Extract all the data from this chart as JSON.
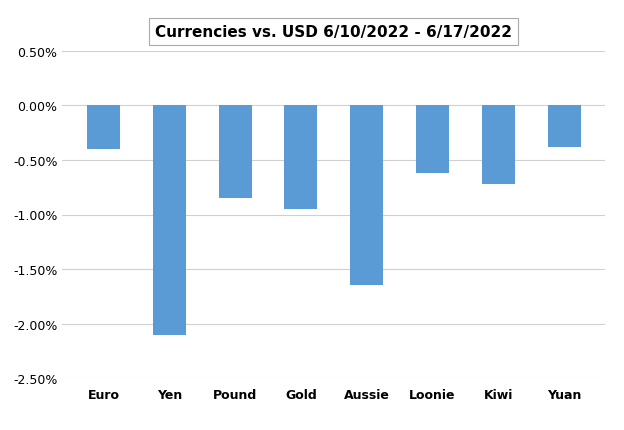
{
  "categories": [
    "Euro",
    "Yen",
    "Pound",
    "Gold",
    "Aussie",
    "Loonie",
    "Kiwi",
    "Yuan"
  ],
  "values": [
    -0.004,
    -0.021,
    -0.0085,
    -0.0095,
    -0.0165,
    -0.0062,
    -0.0072,
    -0.0038
  ],
  "bar_color": "#5B9BD5",
  "title": "Currencies vs. USD 6/10/2022 - 6/17/2022",
  "ylim": [
    -0.025,
    0.005
  ],
  "yticks": [
    0.005,
    0.0,
    -0.005,
    -0.01,
    -0.015,
    -0.02,
    -0.025
  ],
  "ytick_labels": [
    "0.50%",
    "0.00%",
    "-0.50%",
    "-1.00%",
    "-1.50%",
    "-2.00%",
    "-2.50%"
  ],
  "background_color": "#FFFFFF",
  "grid_color": "#D0D0D0",
  "title_fontsize": 11,
  "title_fontweight": "bold",
  "xlabel_fontsize": 11,
  "bar_width": 0.5
}
